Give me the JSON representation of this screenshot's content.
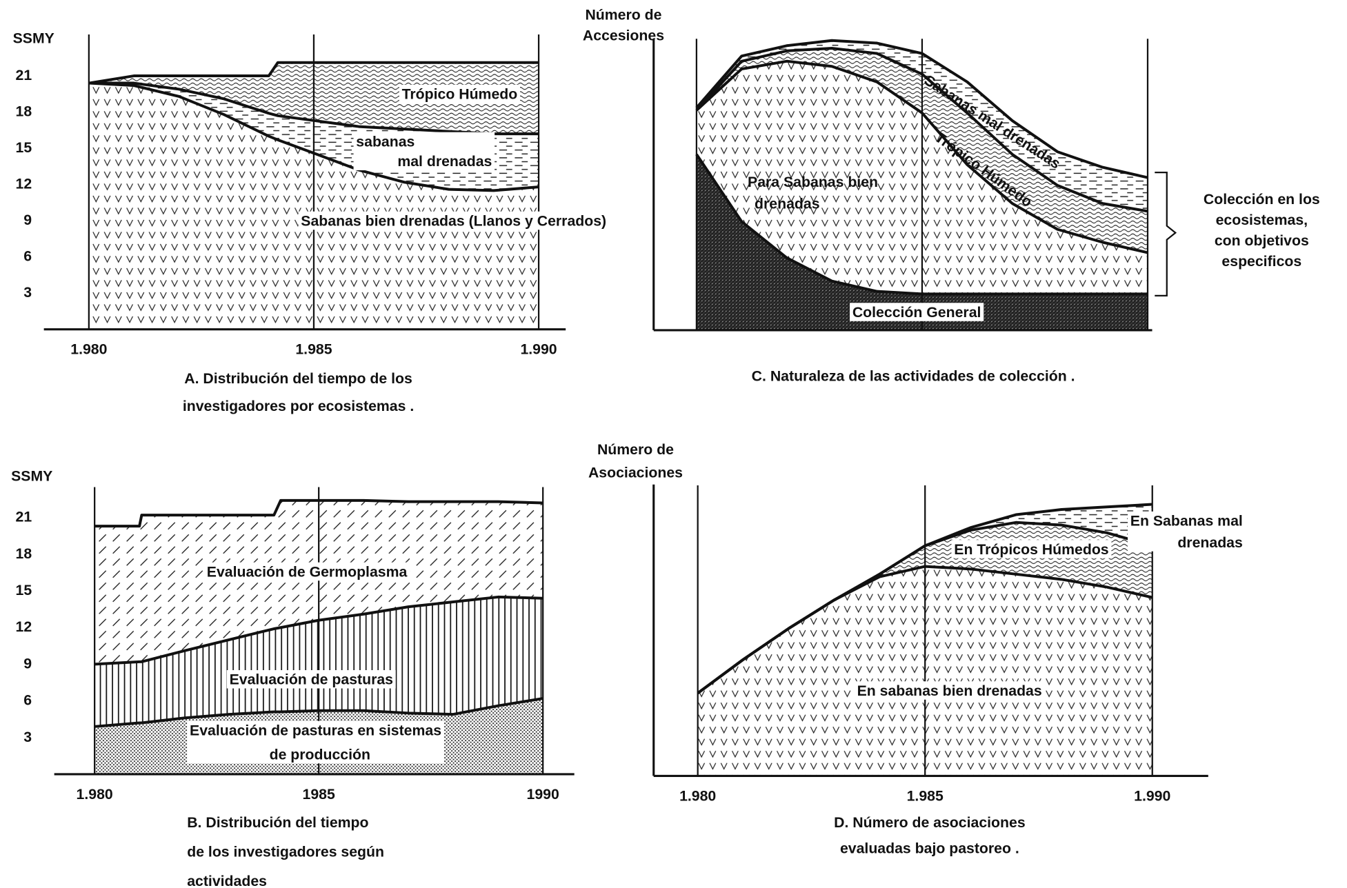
{
  "chart_data": [
    {
      "type": "area",
      "stacked": true,
      "title": "A. Distribución del tiempo de los\ninvestigadores por ecosistemas .",
      "ylabel": "SSMY",
      "x": [
        1980,
        1981,
        1982,
        1983,
        1984,
        1984.2,
        1985,
        1986,
        1987,
        1988,
        1989,
        1990
      ],
      "series": [
        {
          "name": "Sabanas bien drenadas (Llanos y Cerrados)",
          "pattern": "v-marks",
          "values": [
            20.4,
            20.2,
            19.3,
            17.8,
            16.0,
            15.7,
            14.6,
            13.2,
            12.2,
            11.6,
            11.5,
            11.8
          ]
        },
        {
          "name": "sabanas\nmal drenadas",
          "pattern": "dashes",
          "values": [
            0,
            0.2,
            0.6,
            1.3,
            1.9,
            2.0,
            2.7,
            3.6,
            4.4,
            4.8,
            4.7,
            4.4
          ]
        },
        {
          "name": "Trópico Húmedo",
          "pattern": "waves",
          "values": [
            0,
            0.6,
            1.1,
            1.9,
            3.1,
            4.4,
            4.8,
            5.3,
            5.5,
            5.7,
            5.9,
            5.9
          ]
        }
      ],
      "xlim": [
        1979,
        1990.6
      ],
      "xticks": [
        {
          "value": 1980,
          "label": "1.980"
        },
        {
          "value": 1985,
          "label": "1.985"
        },
        {
          "value": 1990,
          "label": "1.990"
        }
      ],
      "ylim": [
        0,
        22.5
      ],
      "yticks": [
        21,
        18,
        15,
        12,
        9,
        6,
        3
      ],
      "xgrid": true
    },
    {
      "type": "area",
      "stacked": true,
      "title": "B. Distribución del tiempo\nde los investigadores según\nactividades",
      "ylabel": "SSMY",
      "x": [
        1980,
        1981,
        1981.05,
        1982,
        1983,
        1984,
        1984.15,
        1985,
        1986,
        1987,
        1988,
        1989,
        1990
      ],
      "series": [
        {
          "name": "Evaluación de pasturas en sistemas\nde producción",
          "pattern": "dots",
          "values": [
            3.9,
            4.2,
            4.2,
            4.6,
            4.9,
            5.1,
            5.1,
            5.2,
            5.2,
            5.0,
            4.9,
            5.6,
            6.2
          ]
        },
        {
          "name": "Evaluación de pasturas",
          "pattern": "vert",
          "values": [
            5.1,
            5.0,
            5.0,
            5.5,
            6.1,
            6.8,
            6.9,
            7.4,
            7.9,
            8.7,
            9.2,
            8.9,
            8.2
          ]
        },
        {
          "name": "Evaluación de Germoplasma",
          "pattern": "diag",
          "values": [
            11.3,
            11.1,
            12.0,
            11.1,
            10.2,
            9.3,
            10.4,
            9.8,
            9.3,
            8.6,
            8.2,
            7.8,
            7.8
          ]
        }
      ],
      "xlim": [
        1979.1,
        1990.7
      ],
      "xticks": [
        {
          "value": 1980,
          "label": "1.980"
        },
        1985,
        1990
      ],
      "ylim": [
        0,
        23
      ],
      "yticks": [
        21,
        18,
        15,
        12,
        9,
        6,
        3
      ],
      "xgrid": true
    },
    {
      "type": "area",
      "stacked": true,
      "title": "C. Naturaleza de las actividades de colección .",
      "ylabel": "Número de\nAccesiones",
      "x": [
        1980,
        1981,
        1982,
        1983,
        1984,
        1985,
        1986,
        1987,
        1988,
        1989,
        1990
      ],
      "series": [
        {
          "name": "Colección General",
          "pattern": "dark",
          "values": [
            68,
            42,
            28,
            19,
            15,
            14,
            14,
            14,
            14,
            14,
            14
          ]
        },
        {
          "name": "Para Sabanas bien\ndrenadas",
          "pattern": "v-marks",
          "values": [
            17,
            59,
            76,
            83,
            81,
            70,
            50,
            35,
            25,
            20,
            16
          ]
        },
        {
          "name": "Trópico Húmedo",
          "pattern": "waves",
          "values": [
            0,
            3,
            4,
            7,
            11,
            15,
            20,
            19,
            17,
            15,
            16
          ]
        },
        {
          "name": "Sabanas mal drenadas",
          "pattern": "dashes",
          "values": [
            1,
            2,
            2,
            3,
            4,
            8,
            12,
            13,
            13,
            14,
            13
          ]
        }
      ],
      "annotation": "Colección en los\necosistemas,\ncon objetivos\nespecificos",
      "xlim": [
        1979.05,
        1990.1
      ],
      "vlines": [
        1980,
        1985,
        1990
      ],
      "ylim": [
        0,
        115
      ]
    },
    {
      "type": "area",
      "stacked": true,
      "title": "D. Número de asociaciones\nevaluadas bajo pastoreo .",
      "ylabel": "Número de\nAsociaciones",
      "x": [
        1980,
        1981,
        1982,
        1983,
        1984,
        1985,
        1986,
        1987,
        1988,
        1989,
        1990
      ],
      "series": [
        {
          "name": "En sabanas bien drenadas",
          "pattern": "v-marks",
          "values": [
            32,
            45,
            57,
            68,
            77,
            81,
            80,
            78,
            76,
            73,
            69
          ]
        },
        {
          "name": "En Trópicos Húmedos",
          "pattern": "waves",
          "values": [
            0,
            0,
            0,
            0,
            1,
            8,
            15,
            20,
            21,
            21,
            20
          ]
        },
        {
          "name": "En Sabanas mal\ndrenadas",
          "pattern": "dashes",
          "values": [
            0,
            0,
            0,
            0,
            0,
            0,
            1,
            3,
            6,
            10,
            16
          ]
        }
      ],
      "xlim": [
        1979.03,
        1991.23
      ],
      "xticks": [
        {
          "value": 1980,
          "label": "1.980"
        },
        {
          "value": 1985,
          "label": "1.985"
        },
        {
          "value": 1990,
          "label": "1.990"
        }
      ],
      "ylim": [
        0,
        113
      ],
      "xgrid": true
    }
  ]
}
